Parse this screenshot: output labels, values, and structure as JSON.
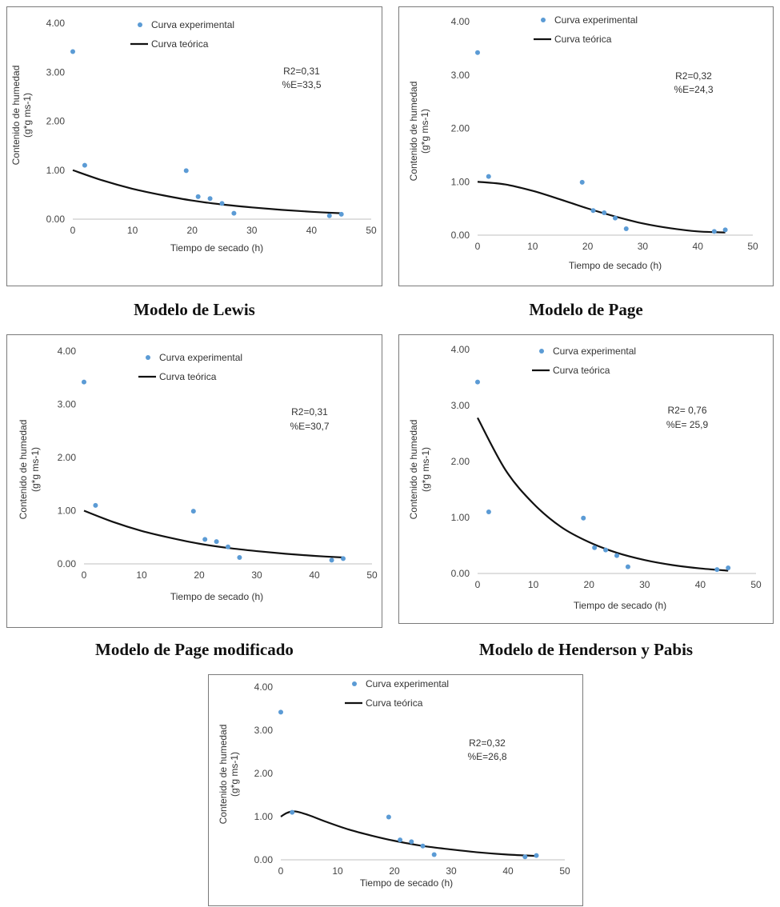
{
  "colors": {
    "experimental": "#5b9bd5",
    "theoretical": "#111111",
    "axis": "#bfbfbf"
  },
  "chart_data": [
    {
      "type": "scatter",
      "caption": "Modelo de Lewis",
      "xlabel": "Tiempo de secado (h)",
      "ylabel": [
        "Contenido de humedad",
        "(g*g ms-1)"
      ],
      "xlim": [
        0,
        50
      ],
      "ylim": [
        0,
        4
      ],
      "xticks": [
        0,
        10,
        20,
        30,
        40,
        50
      ],
      "yticks": [
        "0.00",
        "1.00",
        "2.00",
        "3.00",
        "4.00"
      ],
      "grid": false,
      "legend_position": "top-right",
      "series": [
        {
          "name": "Curva experimental",
          "kind": "scatter",
          "x": [
            0,
            2,
            19,
            21,
            23,
            25,
            27,
            43,
            45
          ],
          "y": [
            3.42,
            1.1,
            0.99,
            0.46,
            0.42,
            0.32,
            0.12,
            0.07,
            0.1
          ]
        },
        {
          "name": "Curva teórica",
          "kind": "line",
          "x": [
            0,
            5,
            10,
            15,
            20,
            25,
            30,
            35,
            40,
            45
          ],
          "y": [
            1.0,
            0.79,
            0.62,
            0.49,
            0.38,
            0.3,
            0.24,
            0.19,
            0.15,
            0.12
          ]
        }
      ],
      "annotations": [
        "R2=0,31",
        "%E=33,5"
      ]
    },
    {
      "type": "scatter",
      "caption": "Modelo de Page",
      "xlabel": "Tiempo de secado (h)",
      "ylabel": [
        "Contenido de humedad",
        "(g*g ms-1)"
      ],
      "xlim": [
        0,
        50
      ],
      "ylim": [
        0,
        4
      ],
      "xticks": [
        0,
        10,
        20,
        30,
        40,
        50
      ],
      "yticks": [
        "0.00",
        "1.00",
        "2.00",
        "3.00",
        "4.00"
      ],
      "grid": false,
      "legend_position": "top-right",
      "series": [
        {
          "name": "Curva experimental",
          "kind": "scatter",
          "x": [
            0,
            2,
            19,
            21,
            23,
            25,
            27,
            43,
            45
          ],
          "y": [
            3.42,
            1.1,
            0.99,
            0.46,
            0.42,
            0.32,
            0.12,
            0.07,
            0.1
          ]
        },
        {
          "name": "Curva teórica",
          "kind": "line",
          "x": [
            0,
            5,
            10,
            15,
            20,
            25,
            30,
            35,
            40,
            45
          ],
          "y": [
            1.0,
            0.95,
            0.83,
            0.67,
            0.5,
            0.35,
            0.22,
            0.13,
            0.07,
            0.05
          ]
        }
      ],
      "annotations": [
        "R2=0,32",
        "%E=24,3"
      ]
    },
    {
      "type": "scatter",
      "caption": "Modelo de Page modificado",
      "xlabel": "Tiempo de secado (h)",
      "ylabel": [
        "Contenido de humedad",
        "(g*g ms-1)"
      ],
      "xlim": [
        0,
        50
      ],
      "ylim": [
        0,
        4
      ],
      "xticks": [
        0,
        10,
        20,
        30,
        40,
        50
      ],
      "yticks": [
        "0.00",
        "1.00",
        "2.00",
        "3.00",
        "4.00"
      ],
      "grid": false,
      "legend_position": "top-right",
      "series": [
        {
          "name": "Curva experimental",
          "kind": "scatter",
          "x": [
            0,
            2,
            19,
            21,
            23,
            25,
            27,
            43,
            45
          ],
          "y": [
            3.42,
            1.1,
            0.99,
            0.46,
            0.42,
            0.32,
            0.12,
            0.07,
            0.1
          ]
        },
        {
          "name": "Curva teórica",
          "kind": "line",
          "x": [
            0,
            5,
            10,
            15,
            20,
            25,
            30,
            35,
            40,
            45
          ],
          "y": [
            1.0,
            0.79,
            0.62,
            0.49,
            0.38,
            0.3,
            0.24,
            0.19,
            0.15,
            0.12
          ]
        }
      ],
      "annotations": [
        "R2=0,31",
        "%E=30,7"
      ]
    },
    {
      "type": "scatter",
      "caption": "Modelo de Henderson y Pabis",
      "xlabel": "Tiempo de secado (h)",
      "ylabel": [
        "Contenido de humedad",
        "(g*g ms-1)"
      ],
      "xlim": [
        0,
        50
      ],
      "ylim": [
        0,
        4
      ],
      "xticks": [
        0,
        10,
        20,
        30,
        40,
        50
      ],
      "yticks": [
        "0.00",
        "1.00",
        "2.00",
        "3.00",
        "4.00"
      ],
      "grid": false,
      "legend_position": "top-right",
      "series": [
        {
          "name": "Curva experimental",
          "kind": "scatter",
          "x": [
            0,
            2,
            19,
            21,
            23,
            25,
            27,
            43,
            45
          ],
          "y": [
            3.42,
            1.1,
            0.99,
            0.46,
            0.42,
            0.32,
            0.12,
            0.07,
            0.1
          ]
        },
        {
          "name": "Curva teórica",
          "kind": "line",
          "x": [
            0,
            5,
            10,
            15,
            20,
            25,
            30,
            35,
            40,
            45
          ],
          "y": [
            2.78,
            1.85,
            1.25,
            0.83,
            0.56,
            0.37,
            0.24,
            0.15,
            0.09,
            0.05
          ]
        }
      ],
      "annotations": [
        "R2= 0,76",
        "%E= 25,9"
      ]
    },
    {
      "type": "scatter",
      "caption": "",
      "xlabel": "Tiempo de secado (h)",
      "ylabel": [
        "Contenido de humedad",
        "(g*g ms-1)"
      ],
      "xlim": [
        0,
        50
      ],
      "ylim": [
        0,
        4
      ],
      "xticks": [
        0,
        10,
        20,
        30,
        40,
        50
      ],
      "yticks": [
        "0.00",
        "1.00",
        "2.00",
        "3.00",
        "4.00"
      ],
      "grid": false,
      "legend_position": "top-right",
      "series": [
        {
          "name": "Curva experimental",
          "kind": "scatter",
          "x": [
            0,
            2,
            19,
            21,
            23,
            25,
            27,
            43,
            45
          ],
          "y": [
            3.42,
            1.1,
            0.99,
            0.46,
            0.42,
            0.32,
            0.12,
            0.07,
            0.1
          ]
        },
        {
          "name": "Curva teórica",
          "kind": "line",
          "x": [
            0,
            1,
            2,
            3,
            5,
            8,
            12,
            16,
            20,
            25,
            30,
            35,
            40,
            45
          ],
          "y": [
            1.0,
            1.08,
            1.12,
            1.11,
            1.03,
            0.88,
            0.7,
            0.56,
            0.44,
            0.32,
            0.24,
            0.17,
            0.12,
            0.09
          ]
        }
      ],
      "annotations": [
        "R2=0,32",
        "%E=26,8"
      ]
    }
  ]
}
